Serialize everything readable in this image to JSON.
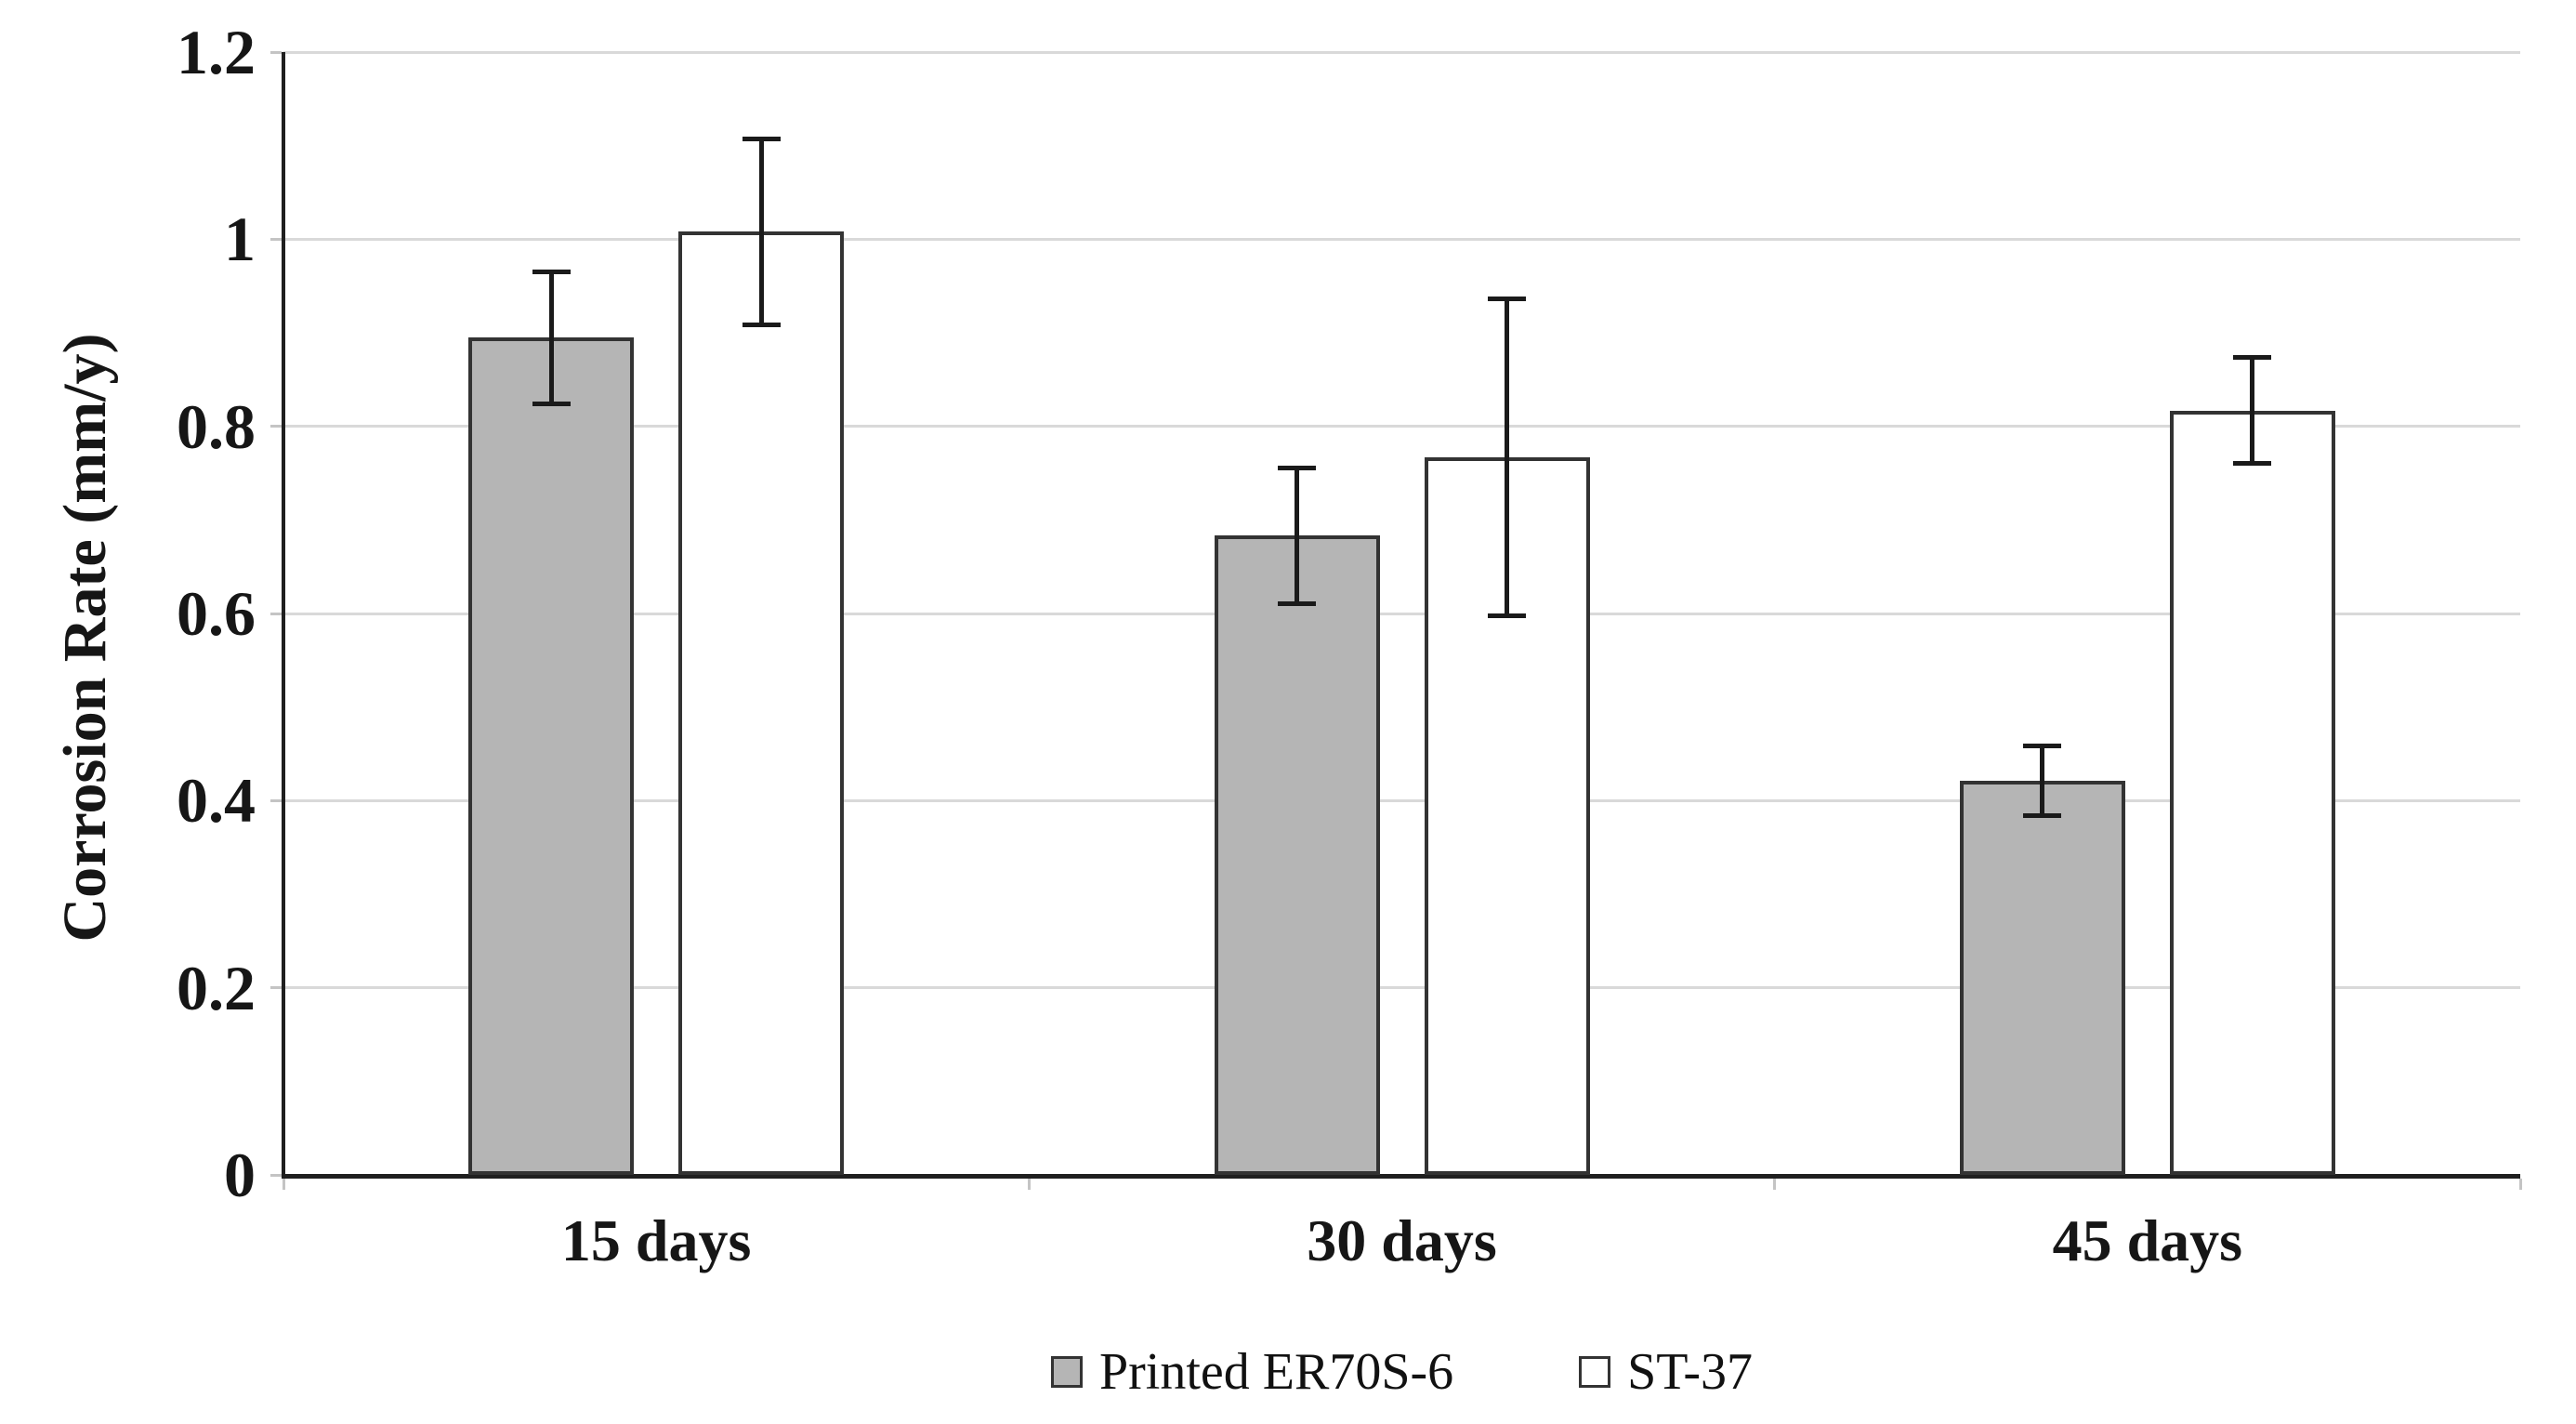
{
  "chart_data": {
    "type": "bar",
    "title": "",
    "ylabel": "Corrosion Rate (mm/y)",
    "xlabel": "",
    "categories": [
      "15 days",
      "30 days",
      "45 days"
    ],
    "series": [
      {
        "name": "Printed ER70S-6",
        "fill": "#b5b5b5",
        "values": [
          0.895,
          0.683,
          0.421
        ],
        "errors": [
          0.071,
          0.073,
          0.038
        ]
      },
      {
        "name": "ST-37",
        "fill": "#ffffff",
        "values": [
          1.008,
          0.767,
          0.817
        ],
        "errors": [
          0.1,
          0.17,
          0.057
        ]
      }
    ],
    "ylim": [
      0,
      1.2
    ],
    "yticks": [
      "0",
      "0.2",
      "0.4",
      "0.6",
      "0.8",
      "1",
      "1.2"
    ],
    "grid": "horizontal",
    "legend_position": "bottom",
    "colors": {
      "gridline": "#d9d9d9",
      "axis": "#1f1f1f",
      "bar_border": "#333333",
      "error_bar": "#1a1a1a",
      "text": "#161616",
      "background": "#ffffff"
    }
  }
}
